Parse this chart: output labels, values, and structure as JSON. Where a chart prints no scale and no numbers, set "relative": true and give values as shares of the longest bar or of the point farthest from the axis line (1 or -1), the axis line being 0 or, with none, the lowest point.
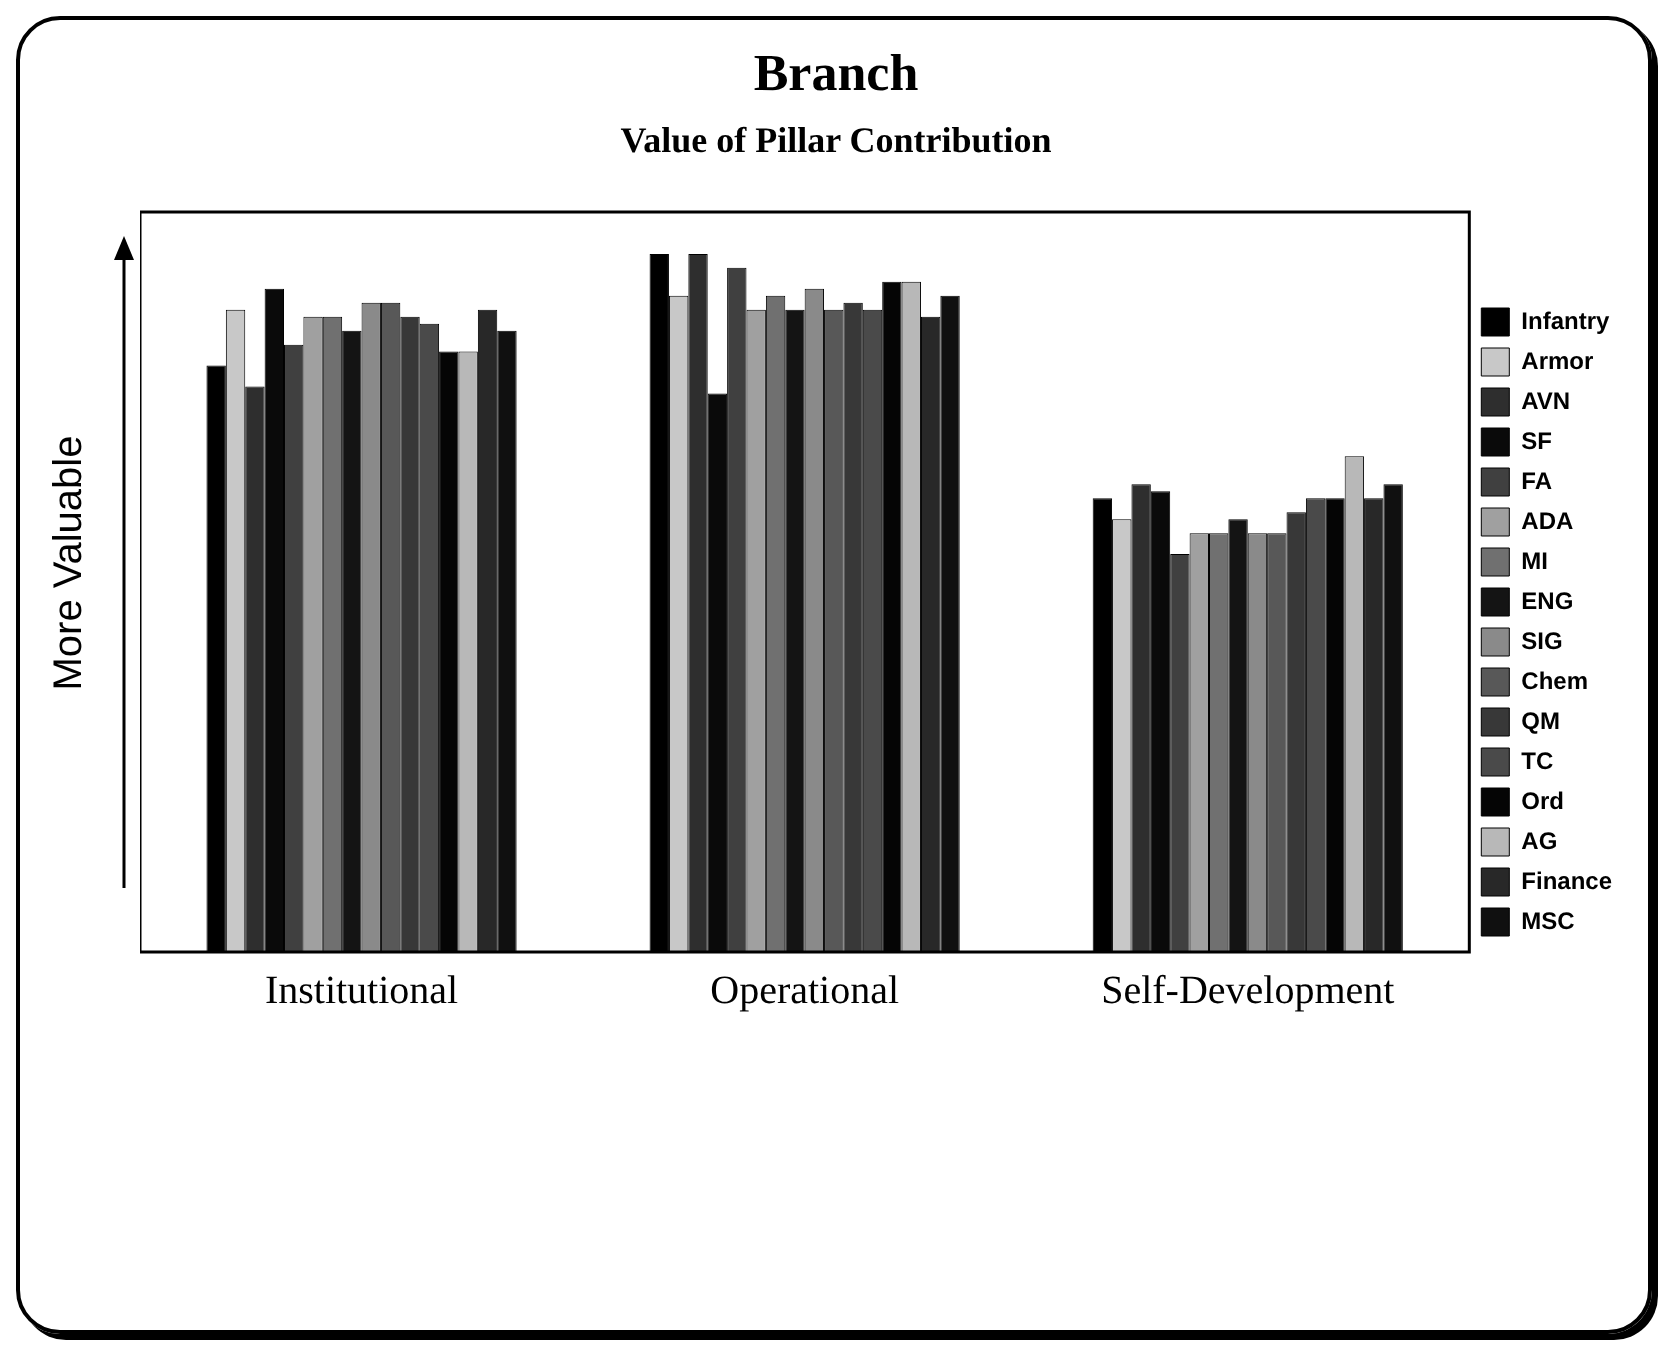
{
  "chart_data": {
    "type": "bar",
    "title": "Branch",
    "subtitle": "Value of Pillar Contribution",
    "ylabel": "More Valuable",
    "relative": true,
    "categories": [
      "Institutional",
      "Operational",
      "Self-Development"
    ],
    "legend": "right",
    "grid": false,
    "series": [
      {
        "name": "Infantry",
        "color": "#000000",
        "values": [
          0.84,
          1,
          0.65
        ]
      },
      {
        "name": "Armor",
        "color": "#c8c8c8",
        "values": [
          0.92,
          0.94,
          0.62
        ]
      },
      {
        "name": "AVN",
        "color": "#2e2e2e",
        "values": [
          0.81,
          1,
          0.67
        ]
      },
      {
        "name": "SF",
        "color": "#0a0a0a",
        "values": [
          0.95,
          0.8,
          0.66
        ]
      },
      {
        "name": "FA",
        "color": "#404040",
        "values": [
          0.87,
          0.98,
          0.57
        ]
      },
      {
        "name": "ADA",
        "color": "#a0a0a0",
        "values": [
          0.91,
          0.92,
          0.6
        ]
      },
      {
        "name": "MI",
        "color": "#707070",
        "values": [
          0.91,
          0.94,
          0.6
        ]
      },
      {
        "name": "ENG",
        "color": "#141414",
        "values": [
          0.89,
          0.92,
          0.62
        ]
      },
      {
        "name": "SIG",
        "color": "#8a8a8a",
        "values": [
          0.93,
          0.95,
          0.6
        ]
      },
      {
        "name": "Chem",
        "color": "#585858",
        "values": [
          0.93,
          0.92,
          0.6
        ]
      },
      {
        "name": "QM",
        "color": "#383838",
        "values": [
          0.91,
          0.93,
          0.63
        ]
      },
      {
        "name": "TC",
        "color": "#4a4a4a",
        "values": [
          0.9,
          0.92,
          0.65
        ]
      },
      {
        "name": "Ord",
        "color": "#050505",
        "values": [
          0.86,
          0.96,
          0.65
        ]
      },
      {
        "name": "AG",
        "color": "#b8b8b8",
        "values": [
          0.86,
          0.96,
          0.71
        ]
      },
      {
        "name": "Finance",
        "color": "#282828",
        "values": [
          0.92,
          0.91,
          0.65
        ]
      },
      {
        "name": "MSC",
        "color": "#101010",
        "values": [
          0.89,
          0.94,
          0.67
        ]
      }
    ]
  }
}
